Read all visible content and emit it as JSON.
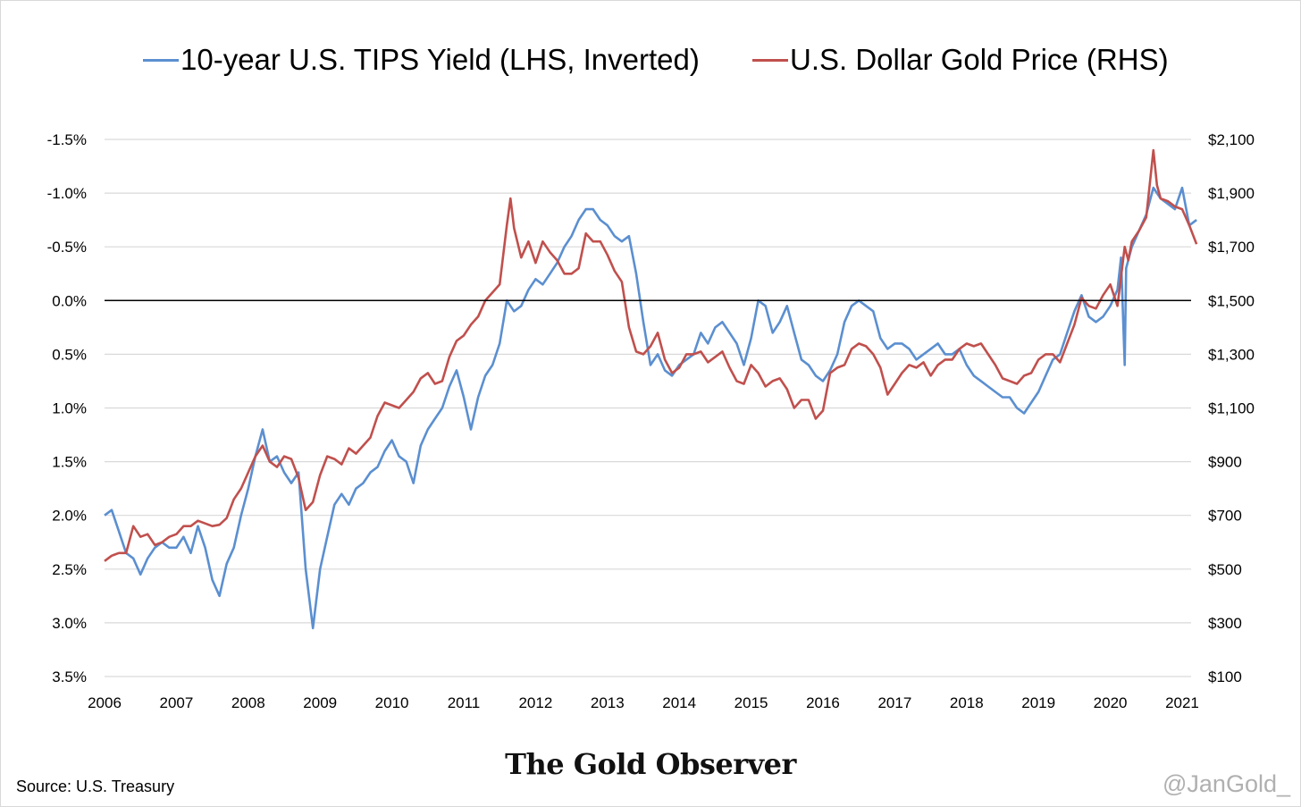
{
  "chart_data": {
    "type": "line",
    "title": "",
    "legend_position": "top",
    "grid": true,
    "x_ticks": [
      "2006",
      "2007",
      "2008",
      "2009",
      "2010",
      "2011",
      "2012",
      "2013",
      "2014",
      "2015",
      "2016",
      "2017",
      "2018",
      "2019",
      "2020",
      "2021"
    ],
    "x_range": [
      2006.0,
      2021.2
    ],
    "y_left": {
      "label": "10-year U.S. TIPS Yield (%)",
      "inverted": true,
      "range": [
        -1.5,
        3.5
      ],
      "ticks": [
        "-1.5%",
        "-1.0%",
        "-0.5%",
        "0.0%",
        "0.5%",
        "1.0%",
        "1.5%",
        "2.0%",
        "2.5%",
        "3.0%",
        "3.5%"
      ]
    },
    "y_right": {
      "label": "U.S. Dollar Gold Price ($)",
      "range": [
        100,
        2100
      ],
      "ticks": [
        "$2,100",
        "$1,900",
        "$1,700",
        "$1,500",
        "$1,300",
        "$1,100",
        "$900",
        "$700",
        "$500",
        "$300",
        "$100"
      ]
    },
    "reference_line": {
      "axis": "left",
      "value": 0.0
    },
    "series": [
      {
        "name": "10-year U.S. TIPS Yield (LHS, Inverted)",
        "axis": "left",
        "color": "#5b8fd0",
        "x": [
          2006.0,
          2006.1,
          2006.2,
          2006.3,
          2006.4,
          2006.5,
          2006.6,
          2006.7,
          2006.8,
          2006.9,
          2007.0,
          2007.1,
          2007.2,
          2007.3,
          2007.4,
          2007.5,
          2007.6,
          2007.7,
          2007.8,
          2007.9,
          2008.0,
          2008.1,
          2008.2,
          2008.3,
          2008.4,
          2008.5,
          2008.6,
          2008.7,
          2008.8,
          2008.9,
          2009.0,
          2009.1,
          2009.2,
          2009.3,
          2009.4,
          2009.5,
          2009.6,
          2009.7,
          2009.8,
          2009.9,
          2010.0,
          2010.1,
          2010.2,
          2010.3,
          2010.4,
          2010.5,
          2010.6,
          2010.7,
          2010.8,
          2010.9,
          2011.0,
          2011.1,
          2011.2,
          2011.3,
          2011.4,
          2011.5,
          2011.6,
          2011.7,
          2011.8,
          2011.9,
          2012.0,
          2012.1,
          2012.2,
          2012.3,
          2012.4,
          2012.5,
          2012.6,
          2012.7,
          2012.8,
          2012.9,
          2013.0,
          2013.1,
          2013.2,
          2013.3,
          2013.4,
          2013.5,
          2013.6,
          2013.7,
          2013.8,
          2013.9,
          2014.0,
          2014.1,
          2014.2,
          2014.3,
          2014.4,
          2014.5,
          2014.6,
          2014.7,
          2014.8,
          2014.9,
          2015.0,
          2015.1,
          2015.2,
          2015.3,
          2015.4,
          2015.5,
          2015.6,
          2015.7,
          2015.8,
          2015.9,
          2016.0,
          2016.1,
          2016.2,
          2016.3,
          2016.4,
          2016.5,
          2016.6,
          2016.7,
          2016.8,
          2016.9,
          2017.0,
          2017.1,
          2017.2,
          2017.3,
          2017.4,
          2017.5,
          2017.6,
          2017.7,
          2017.8,
          2017.9,
          2018.0,
          2018.1,
          2018.2,
          2018.3,
          2018.4,
          2018.5,
          2018.6,
          2018.7,
          2018.8,
          2018.9,
          2019.0,
          2019.1,
          2019.2,
          2019.3,
          2019.4,
          2019.5,
          2019.6,
          2019.7,
          2019.8,
          2019.9,
          2020.0,
          2020.1,
          2020.15,
          2020.2,
          2020.22,
          2020.3,
          2020.4,
          2020.5,
          2020.6,
          2020.7,
          2020.8,
          2020.9,
          2021.0,
          2021.1,
          2021.2
        ],
        "values": [
          2.0,
          1.95,
          2.15,
          2.35,
          2.4,
          2.55,
          2.4,
          2.3,
          2.25,
          2.3,
          2.3,
          2.2,
          2.35,
          2.1,
          2.3,
          2.6,
          2.75,
          2.45,
          2.3,
          2.0,
          1.75,
          1.45,
          1.2,
          1.5,
          1.45,
          1.6,
          1.7,
          1.6,
          2.5,
          3.05,
          2.5,
          2.2,
          1.9,
          1.8,
          1.9,
          1.75,
          1.7,
          1.6,
          1.55,
          1.4,
          1.3,
          1.45,
          1.5,
          1.7,
          1.35,
          1.2,
          1.1,
          1.0,
          0.8,
          0.65,
          0.9,
          1.2,
          0.9,
          0.7,
          0.6,
          0.4,
          0.0,
          0.1,
          0.05,
          -0.1,
          -0.2,
          -0.15,
          -0.25,
          -0.35,
          -0.5,
          -0.6,
          -0.75,
          -0.85,
          -0.85,
          -0.75,
          -0.7,
          -0.6,
          -0.55,
          -0.6,
          -0.25,
          0.2,
          0.6,
          0.5,
          0.65,
          0.7,
          0.6,
          0.55,
          0.5,
          0.3,
          0.4,
          0.25,
          0.2,
          0.3,
          0.4,
          0.6,
          0.35,
          0.0,
          0.05,
          0.3,
          0.2,
          0.05,
          0.3,
          0.55,
          0.6,
          0.7,
          0.75,
          0.65,
          0.5,
          0.2,
          0.05,
          0.0,
          0.05,
          0.1,
          0.35,
          0.45,
          0.4,
          0.4,
          0.45,
          0.55,
          0.5,
          0.45,
          0.4,
          0.5,
          0.5,
          0.45,
          0.6,
          0.7,
          0.75,
          0.8,
          0.85,
          0.9,
          0.9,
          1.0,
          1.05,
          0.95,
          0.85,
          0.7,
          0.55,
          0.5,
          0.3,
          0.1,
          -0.05,
          0.15,
          0.2,
          0.15,
          0.05,
          -0.1,
          -0.4,
          0.6,
          -0.3,
          -0.5,
          -0.65,
          -0.8,
          -1.05,
          -0.95,
          -0.9,
          -0.85,
          -1.05,
          -0.7,
          -0.75
        ]
      },
      {
        "name": "U.S. Dollar Gold Price (RHS)",
        "axis": "right",
        "color": "#c0504d",
        "x": [
          2006.0,
          2006.1,
          2006.2,
          2006.3,
          2006.4,
          2006.5,
          2006.6,
          2006.7,
          2006.8,
          2006.9,
          2007.0,
          2007.1,
          2007.2,
          2007.3,
          2007.4,
          2007.5,
          2007.6,
          2007.7,
          2007.8,
          2007.9,
          2008.0,
          2008.1,
          2008.2,
          2008.3,
          2008.4,
          2008.5,
          2008.6,
          2008.7,
          2008.8,
          2008.9,
          2009.0,
          2009.1,
          2009.2,
          2009.3,
          2009.4,
          2009.5,
          2009.6,
          2009.7,
          2009.8,
          2009.9,
          2010.0,
          2010.1,
          2010.2,
          2010.3,
          2010.4,
          2010.5,
          2010.6,
          2010.7,
          2010.8,
          2010.9,
          2011.0,
          2011.1,
          2011.2,
          2011.3,
          2011.4,
          2011.5,
          2011.6,
          2011.65,
          2011.7,
          2011.8,
          2011.9,
          2012.0,
          2012.1,
          2012.2,
          2012.3,
          2012.4,
          2012.5,
          2012.6,
          2012.7,
          2012.8,
          2012.9,
          2013.0,
          2013.1,
          2013.2,
          2013.3,
          2013.4,
          2013.5,
          2013.6,
          2013.7,
          2013.8,
          2013.9,
          2014.0,
          2014.1,
          2014.2,
          2014.3,
          2014.4,
          2014.5,
          2014.6,
          2014.7,
          2014.8,
          2014.9,
          2015.0,
          2015.1,
          2015.2,
          2015.3,
          2015.4,
          2015.5,
          2015.6,
          2015.7,
          2015.8,
          2015.9,
          2016.0,
          2016.1,
          2016.2,
          2016.3,
          2016.4,
          2016.5,
          2016.6,
          2016.7,
          2016.8,
          2016.9,
          2017.0,
          2017.1,
          2017.2,
          2017.3,
          2017.4,
          2017.5,
          2017.6,
          2017.7,
          2017.8,
          2017.9,
          2018.0,
          2018.1,
          2018.2,
          2018.3,
          2018.4,
          2018.5,
          2018.6,
          2018.7,
          2018.8,
          2018.9,
          2019.0,
          2019.1,
          2019.2,
          2019.3,
          2019.4,
          2019.5,
          2019.6,
          2019.7,
          2019.8,
          2019.9,
          2020.0,
          2020.1,
          2020.2,
          2020.25,
          2020.3,
          2020.4,
          2020.5,
          2020.6,
          2020.65,
          2020.7,
          2020.8,
          2020.9,
          2021.0,
          2021.1,
          2021.2
        ],
        "values": [
          530,
          550,
          560,
          560,
          660,
          620,
          630,
          590,
          600,
          620,
          630,
          660,
          660,
          680,
          670,
          660,
          665,
          690,
          760,
          800,
          860,
          920,
          960,
          900,
          880,
          920,
          910,
          840,
          720,
          750,
          850,
          920,
          910,
          890,
          950,
          930,
          960,
          990,
          1070,
          1120,
          1110,
          1100,
          1130,
          1160,
          1210,
          1230,
          1190,
          1200,
          1290,
          1350,
          1370,
          1410,
          1440,
          1500,
          1530,
          1560,
          1780,
          1880,
          1770,
          1660,
          1720,
          1640,
          1720,
          1680,
          1650,
          1600,
          1600,
          1620,
          1750,
          1720,
          1720,
          1670,
          1610,
          1570,
          1400,
          1310,
          1300,
          1330,
          1380,
          1280,
          1230,
          1250,
          1300,
          1300,
          1310,
          1270,
          1290,
          1310,
          1250,
          1200,
          1190,
          1260,
          1230,
          1180,
          1200,
          1210,
          1170,
          1100,
          1130,
          1130,
          1060,
          1090,
          1230,
          1250,
          1260,
          1320,
          1340,
          1330,
          1300,
          1250,
          1150,
          1190,
          1230,
          1260,
          1250,
          1270,
          1220,
          1260,
          1280,
          1280,
          1320,
          1340,
          1330,
          1340,
          1300,
          1260,
          1210,
          1200,
          1190,
          1220,
          1230,
          1280,
          1300,
          1300,
          1270,
          1340,
          1410,
          1510,
          1480,
          1470,
          1520,
          1560,
          1480,
          1700,
          1650,
          1720,
          1760,
          1810,
          2060,
          1930,
          1880,
          1870,
          1850,
          1840,
          1780,
          1710
        ]
      }
    ]
  },
  "legend": [
    {
      "label": "10-year U.S. TIPS Yield (LHS, Inverted)",
      "color": "#5b8fd0"
    },
    {
      "label": "U.S. Dollar Gold Price (RHS)",
      "color": "#c0504d"
    }
  ],
  "footer": {
    "brand": "The Gold Observer",
    "source": "Source: U.S. Treasury",
    "handle": "@JanGold_"
  }
}
